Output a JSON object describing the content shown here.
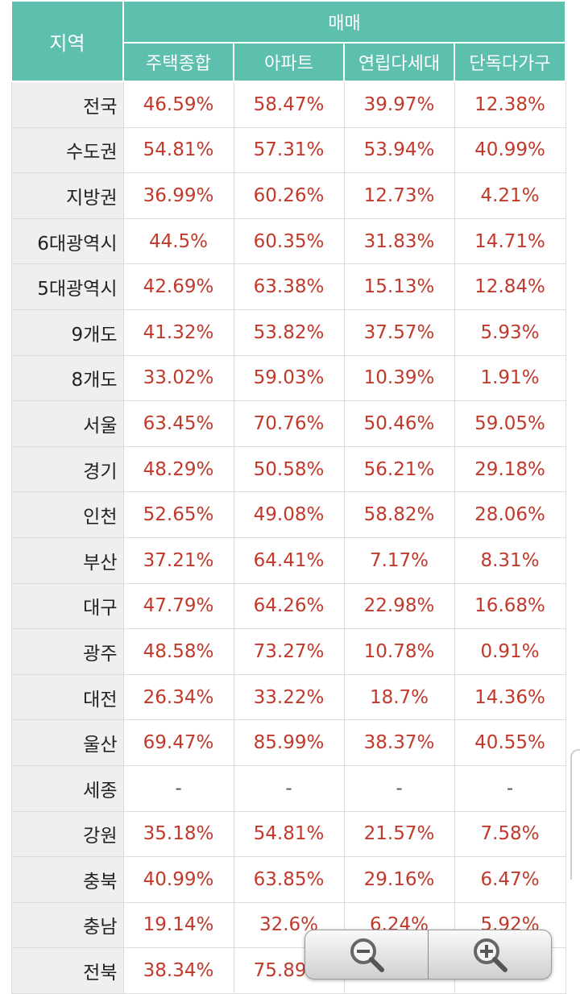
{
  "header": {
    "region_label": "지역",
    "group_label": "매매",
    "columns": [
      "주택종합",
      "아파트",
      "연립다세대",
      "단독다가구"
    ]
  },
  "rows": [
    {
      "region": "전국",
      "values": [
        "46.59%",
        "58.47%",
        "39.97%",
        "12.38%"
      ]
    },
    {
      "region": "수도권",
      "values": [
        "54.81%",
        "57.31%",
        "53.94%",
        "40.99%"
      ]
    },
    {
      "region": "지방권",
      "values": [
        "36.99%",
        "60.26%",
        "12.73%",
        "4.21%"
      ]
    },
    {
      "region": "6대광역시",
      "values": [
        "44.5%",
        "60.35%",
        "31.83%",
        "14.71%"
      ]
    },
    {
      "region": "5대광역시",
      "values": [
        "42.69%",
        "63.38%",
        "15.13%",
        "12.84%"
      ]
    },
    {
      "region": "9개도",
      "values": [
        "41.32%",
        "53.82%",
        "37.57%",
        "5.93%"
      ]
    },
    {
      "region": "8개도",
      "values": [
        "33.02%",
        "59.03%",
        "10.39%",
        "1.91%"
      ]
    },
    {
      "region": "서울",
      "values": [
        "63.45%",
        "70.76%",
        "50.46%",
        "59.05%"
      ]
    },
    {
      "region": "경기",
      "values": [
        "48.29%",
        "50.58%",
        "56.21%",
        "29.18%"
      ]
    },
    {
      "region": "인천",
      "values": [
        "52.65%",
        "49.08%",
        "58.82%",
        "28.06%"
      ]
    },
    {
      "region": "부산",
      "values": [
        "37.21%",
        "64.41%",
        "7.17%",
        "8.31%"
      ]
    },
    {
      "region": "대구",
      "values": [
        "47.79%",
        "64.26%",
        "22.98%",
        "16.68%"
      ]
    },
    {
      "region": "광주",
      "values": [
        "48.58%",
        "73.27%",
        "10.78%",
        "0.91%"
      ]
    },
    {
      "region": "대전",
      "values": [
        "26.34%",
        "33.22%",
        "18.7%",
        "14.36%"
      ]
    },
    {
      "region": "울산",
      "values": [
        "69.47%",
        "85.99%",
        "38.37%",
        "40.55%"
      ]
    },
    {
      "region": "세종",
      "values": [
        "-",
        "-",
        "-",
        "-"
      ]
    },
    {
      "region": "강원",
      "values": [
        "35.18%",
        "54.81%",
        "21.57%",
        "7.58%"
      ]
    },
    {
      "region": "충북",
      "values": [
        "40.99%",
        "63.85%",
        "29.16%",
        "6.47%"
      ]
    },
    {
      "region": "충남",
      "values": [
        "19.14%",
        "32.6%",
        "6.24%",
        "5.92%"
      ]
    },
    {
      "region": "전북",
      "values": [
        "38.34%",
        "75.89%",
        "",
        ""
      ]
    }
  ],
  "zoom_controls": {
    "zoom_out_icon": "magnifier-minus-icon",
    "zoom_in_icon": "magnifier-plus-icon"
  },
  "colors": {
    "header_bg": "#5dbfae",
    "value_text": "#c0392b",
    "region_bg": "#efefef"
  }
}
